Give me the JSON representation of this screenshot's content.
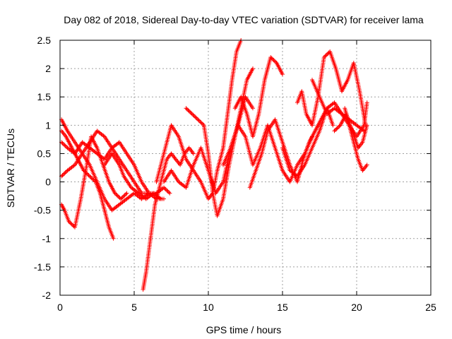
{
  "chart_data": {
    "type": "scatter",
    "title": "Day 082 of 2018, Sidereal Day-to-day VTEC variation (SDTVAR) for receiver lama",
    "xlabel": "GPS time / hours",
    "ylabel": "SDTVAR / TECUs",
    "xlim": [
      0,
      25
    ],
    "ylim": [
      -2,
      2.5
    ],
    "xticks": [
      0,
      5,
      10,
      15,
      20,
      25
    ],
    "yticks": [
      -2,
      -1.5,
      -1,
      -0.5,
      0,
      0.5,
      1,
      1.5,
      2,
      2.5
    ],
    "grid": true,
    "marker": "+",
    "series_color": "#ff0000",
    "series": [
      {
        "x": [
          0.1,
          0.4,
          0.8,
          1.2,
          1.6,
          2.0,
          2.4,
          2.7,
          3.0,
          3.3,
          3.6
        ],
        "y": [
          0.9,
          0.8,
          0.6,
          0.4,
          0.2,
          0.1,
          0.0,
          -0.2,
          -0.5,
          -0.8,
          -1.0
        ]
      },
      {
        "x": [
          0.1,
          0.3,
          0.6,
          1.0,
          1.4,
          1.8,
          2.1,
          2.5,
          2.9,
          3.3,
          3.7,
          4.1,
          4.5
        ],
        "y": [
          -0.4,
          -0.5,
          -0.7,
          -0.8,
          -0.3,
          0.3,
          0.8,
          0.6,
          0.3,
          0.0,
          -0.2,
          -0.3,
          -0.2
        ]
      },
      {
        "x": [
          0.1,
          0.5,
          1.0,
          1.5,
          2.0,
          2.5,
          3.0,
          3.5,
          4.0,
          4.5,
          5.0,
          5.5,
          6.0,
          6.5,
          7.0,
          7.4
        ],
        "y": [
          0.1,
          0.2,
          0.3,
          0.5,
          0.7,
          0.9,
          0.8,
          0.6,
          0.4,
          0.2,
          0.0,
          -0.2,
          -0.2,
          -0.2,
          -0.1,
          -0.2
        ]
      },
      {
        "x": [
          0.1,
          0.5,
          1.0,
          1.5,
          2.0,
          2.5,
          3.0,
          3.5,
          4.0,
          4.5,
          5.0,
          5.5,
          6.0
        ],
        "y": [
          1.1,
          0.9,
          0.7,
          0.5,
          0.3,
          0.0,
          -0.3,
          -0.5,
          -0.4,
          -0.3,
          -0.2,
          -0.3,
          -0.2
        ]
      },
      {
        "x": [
          0.1,
          0.5,
          1.0,
          1.5,
          2.0,
          2.5,
          3.0,
          3.5,
          4.0,
          4.5,
          5.0,
          5.5,
          6.0,
          6.5,
          7.0
        ],
        "y": [
          0.7,
          0.6,
          0.5,
          0.7,
          0.6,
          0.5,
          0.4,
          0.6,
          0.7,
          0.5,
          0.3,
          0.0,
          -0.2,
          -0.3,
          -0.3
        ]
      },
      {
        "x": [
          3.0,
          3.5,
          4.0,
          4.3,
          4.8,
          5.3,
          5.8,
          6.3,
          6.8
        ],
        "y": [
          0.3,
          0.5,
          0.3,
          0.1,
          -0.1,
          -0.2,
          -0.3,
          -0.2,
          -0.3
        ]
      },
      {
        "x": [
          5.6,
          5.8,
          6.0,
          6.2,
          6.4,
          6.6,
          6.8,
          7.0,
          7.2,
          7.5,
          7.8,
          8.1,
          8.4,
          8.7,
          9.0
        ],
        "y": [
          -1.9,
          -1.6,
          -1.2,
          -0.8,
          -0.4,
          -0.2,
          0.0,
          0.2,
          0.4,
          0.5,
          0.4,
          0.3,
          0.5,
          0.6,
          0.5
        ]
      },
      {
        "x": [
          6.5,
          7.0,
          7.5,
          8.0,
          8.5,
          9.0,
          9.5,
          10.0,
          10.3,
          10.6,
          11.0,
          11.3,
          11.6,
          11.9,
          12.2
        ],
        "y": [
          0.0,
          0.5,
          1.0,
          0.8,
          0.4,
          0.2,
          0.0,
          -0.3,
          -0.2,
          0.2,
          0.6,
          1.2,
          1.8,
          2.3,
          2.5
        ]
      },
      {
        "x": [
          7.0,
          7.5,
          8.0,
          8.5,
          9.0,
          9.5,
          10.0,
          10.5,
          11.0,
          11.5,
          12.0,
          12.5,
          13.0
        ],
        "y": [
          0.0,
          0.2,
          0.0,
          -0.1,
          0.3,
          0.6,
          0.2,
          -0.2,
          0.0,
          0.6,
          1.0,
          1.5,
          1.3
        ]
      },
      {
        "x": [
          8.5,
          8.9,
          9.3,
          9.7,
          10.0,
          10.3,
          10.6,
          11.0,
          11.4,
          11.8,
          12.2,
          12.6,
          13.0
        ],
        "y": [
          1.3,
          1.2,
          1.1,
          1.0,
          0.5,
          -0.2,
          -0.6,
          -0.3,
          0.3,
          0.8,
          1.3,
          1.8,
          2.0
        ]
      },
      {
        "x": [
          11.0,
          11.5,
          12.0,
          12.5,
          13.0,
          13.5,
          14.0,
          14.5,
          15.0,
          15.5,
          16.0,
          16.5,
          17.0
        ],
        "y": [
          0.3,
          0.6,
          1.0,
          0.8,
          0.3,
          0.6,
          1.0,
          0.6,
          0.2,
          0.0,
          0.3,
          0.5,
          0.8
        ]
      },
      {
        "x": [
          11.8,
          12.2,
          12.6,
          13.0,
          13.4,
          13.8,
          14.2,
          14.6,
          15.0
        ],
        "y": [
          1.3,
          1.5,
          1.2,
          0.8,
          1.2,
          1.8,
          2.2,
          2.1,
          1.9
        ]
      },
      {
        "x": [
          12.8,
          13.2,
          13.6,
          14.0,
          14.5,
          15.0,
          15.5,
          16.0,
          16.4,
          16.8,
          17.2,
          17.6,
          18.0,
          18.4
        ],
        "y": [
          -0.1,
          0.2,
          0.5,
          0.9,
          1.1,
          0.7,
          0.3,
          0.0,
          0.4,
          0.7,
          0.9,
          1.1,
          1.3,
          1.0
        ]
      },
      {
        "x": [
          15.0,
          15.5,
          16.0,
          16.5,
          17.0,
          17.5,
          18.0,
          18.5,
          19.0,
          19.5,
          20.0,
          20.5
        ],
        "y": [
          0.6,
          0.2,
          0.1,
          0.3,
          0.6,
          0.9,
          1.3,
          1.4,
          1.2,
          1.1,
          1.0,
          0.9
        ]
      },
      {
        "x": [
          16.0,
          16.3,
          16.6,
          17.0,
          17.4,
          17.8,
          18.2,
          18.6,
          19.0,
          19.4,
          19.8,
          20.2,
          20.6
        ],
        "y": [
          1.4,
          1.6,
          1.2,
          1.0,
          1.5,
          2.2,
          2.3,
          2.0,
          1.6,
          1.8,
          2.1,
          1.6,
          1.0
        ]
      },
      {
        "x": [
          17.0,
          17.5,
          18.0,
          18.5,
          19.0,
          19.5,
          20.0,
          20.5,
          20.7
        ],
        "y": [
          1.8,
          1.5,
          1.2,
          1.3,
          1.2,
          1.0,
          0.8,
          1.0,
          1.4
        ]
      },
      {
        "x": [
          18.5,
          18.9,
          19.3,
          19.7,
          20.1,
          20.4,
          20.7
        ],
        "y": [
          0.9,
          1.0,
          1.2,
          0.9,
          0.6,
          0.7,
          1.0
        ]
      },
      {
        "x": [
          19.2,
          19.5,
          19.8,
          20.1,
          20.4,
          20.7
        ],
        "y": [
          1.3,
          1.0,
          0.7,
          0.4,
          0.2,
          0.3
        ]
      }
    ]
  }
}
